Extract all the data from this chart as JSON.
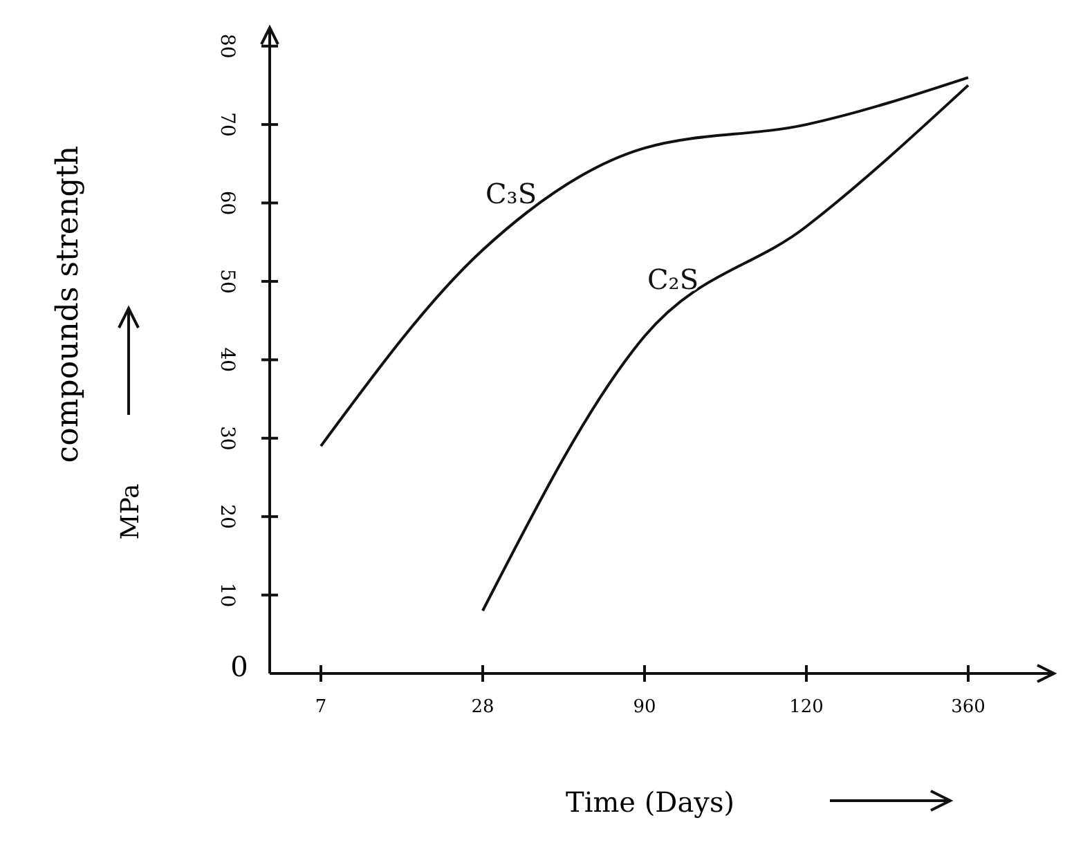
{
  "chart_data": {
    "type": "line",
    "xlabel": "Time (Days)",
    "ylabel": "compounds strength\nMPa",
    "categories": [
      "7",
      "28",
      "90",
      "120",
      "360"
    ],
    "series": [
      {
        "name": "C₃S",
        "color": "#111111",
        "values": [
          29,
          54,
          67,
          70,
          76
        ]
      },
      {
        "name": "C₂S",
        "color": "#111111",
        "values": [
          null,
          8,
          43,
          57,
          75
        ]
      }
    ],
    "ylim": [
      0,
      82
    ],
    "yticks": [
      10,
      20,
      30,
      40,
      50,
      60,
      70,
      80
    ],
    "annotations": [
      "0"
    ],
    "grid": false,
    "marker": "none",
    "line_style": "solid"
  }
}
